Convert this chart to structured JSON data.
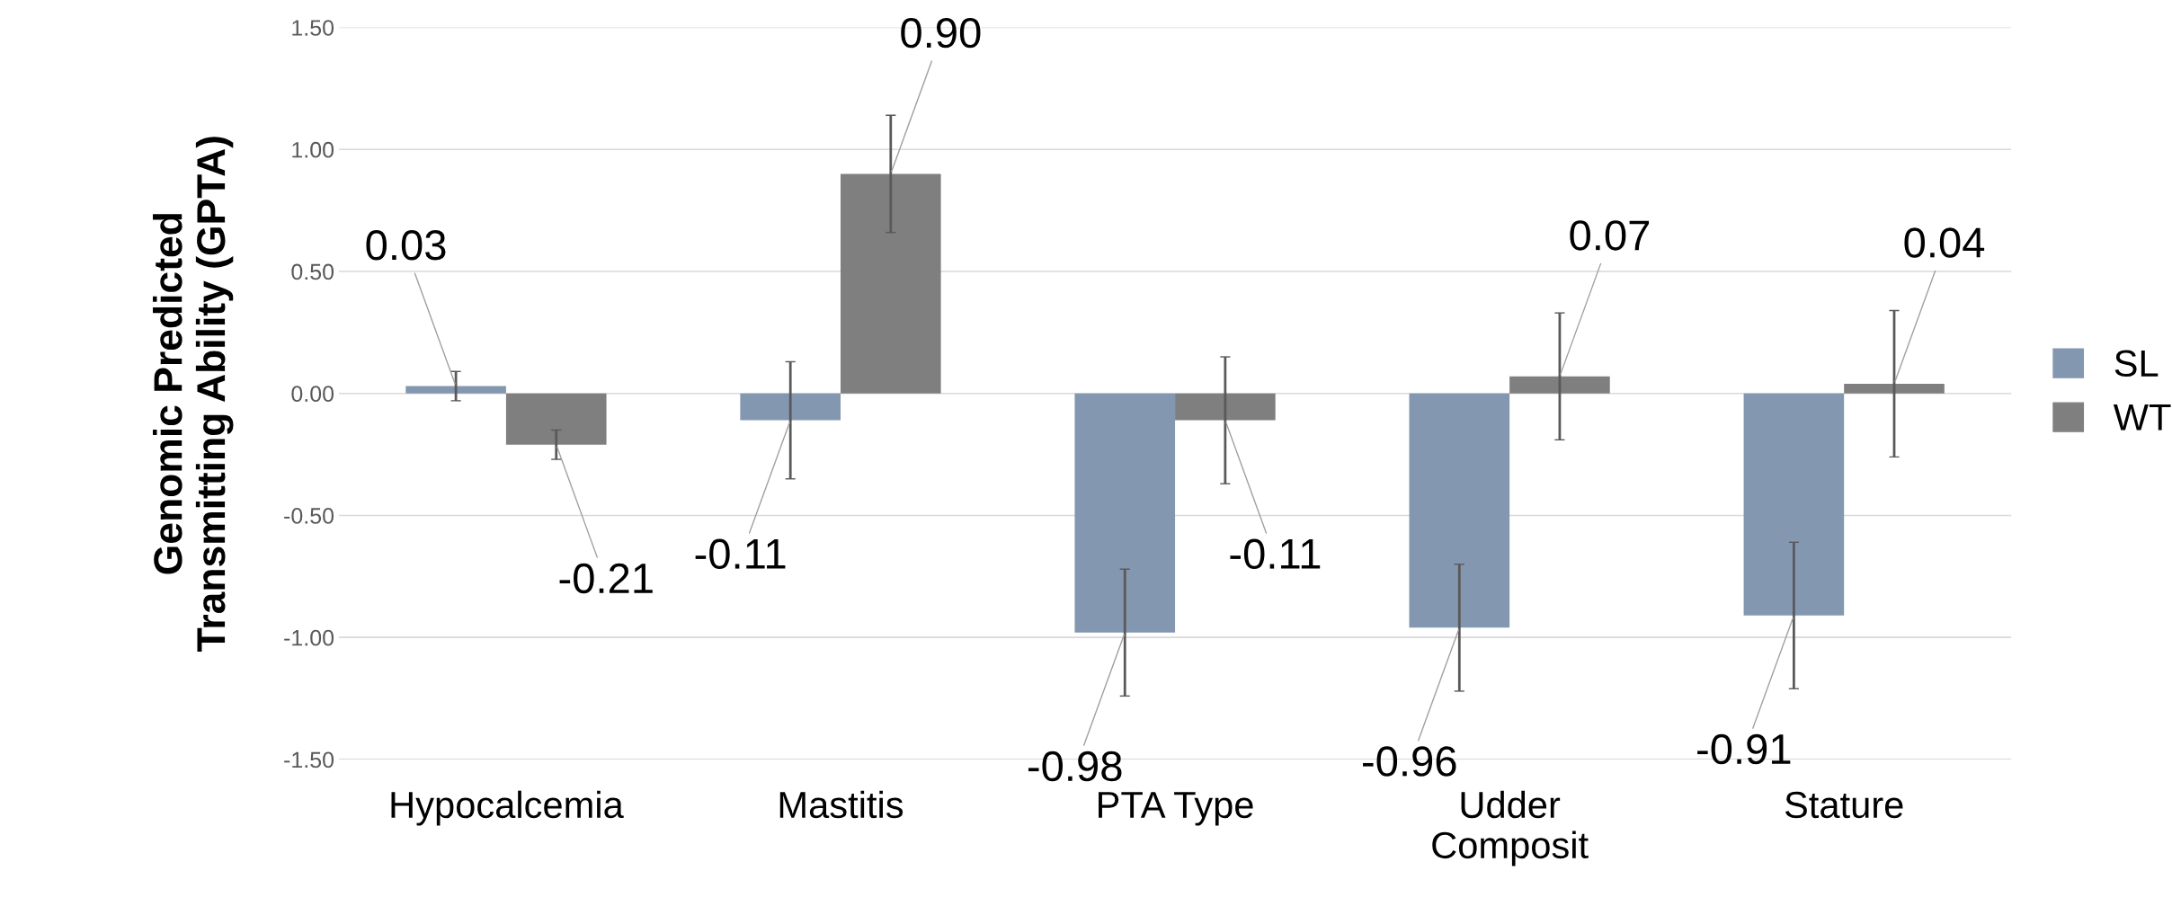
{
  "chart_data": {
    "type": "bar",
    "ylabel": "Genomic Predicted\nTransmitting Ability (GPTA)",
    "categories": [
      "Hypocalcemia",
      "Mastitis",
      "PTA Type",
      "Udder\nComposit",
      "Stature"
    ],
    "series": [
      {
        "name": "SL",
        "color": "#8497b0",
        "values": [
          0.03,
          -0.11,
          -0.98,
          -0.96,
          -0.91
        ],
        "value_labels": [
          "0.03",
          "-0.11",
          "-0.98",
          "-0.96",
          "-0.91"
        ],
        "errors": [
          0.06,
          0.24,
          0.26,
          0.26,
          0.3
        ]
      },
      {
        "name": "WT",
        "color": "#7f7f7f",
        "values": [
          -0.21,
          0.9,
          -0.11,
          0.07,
          0.04
        ],
        "value_labels": [
          "-0.21",
          "0.90",
          "-0.11",
          "0.07",
          "0.04"
        ],
        "errors": [
          0.06,
          0.24,
          0.26,
          0.26,
          0.3
        ]
      }
    ],
    "ylim": [
      -1.5,
      1.5
    ],
    "yticks": [
      {
        "value": -1.5,
        "label": "-1.50"
      },
      {
        "value": -1.0,
        "label": "-1.00"
      },
      {
        "value": -0.5,
        "label": "-0.50"
      },
      {
        "value": 0,
        "label": "0.00"
      },
      {
        "value": 0.5,
        "label": "0.50"
      },
      {
        "value": 1.0,
        "label": "1.00"
      },
      {
        "value": 1.5,
        "label": "1.50"
      }
    ],
    "grid": "y",
    "legend": "right"
  }
}
